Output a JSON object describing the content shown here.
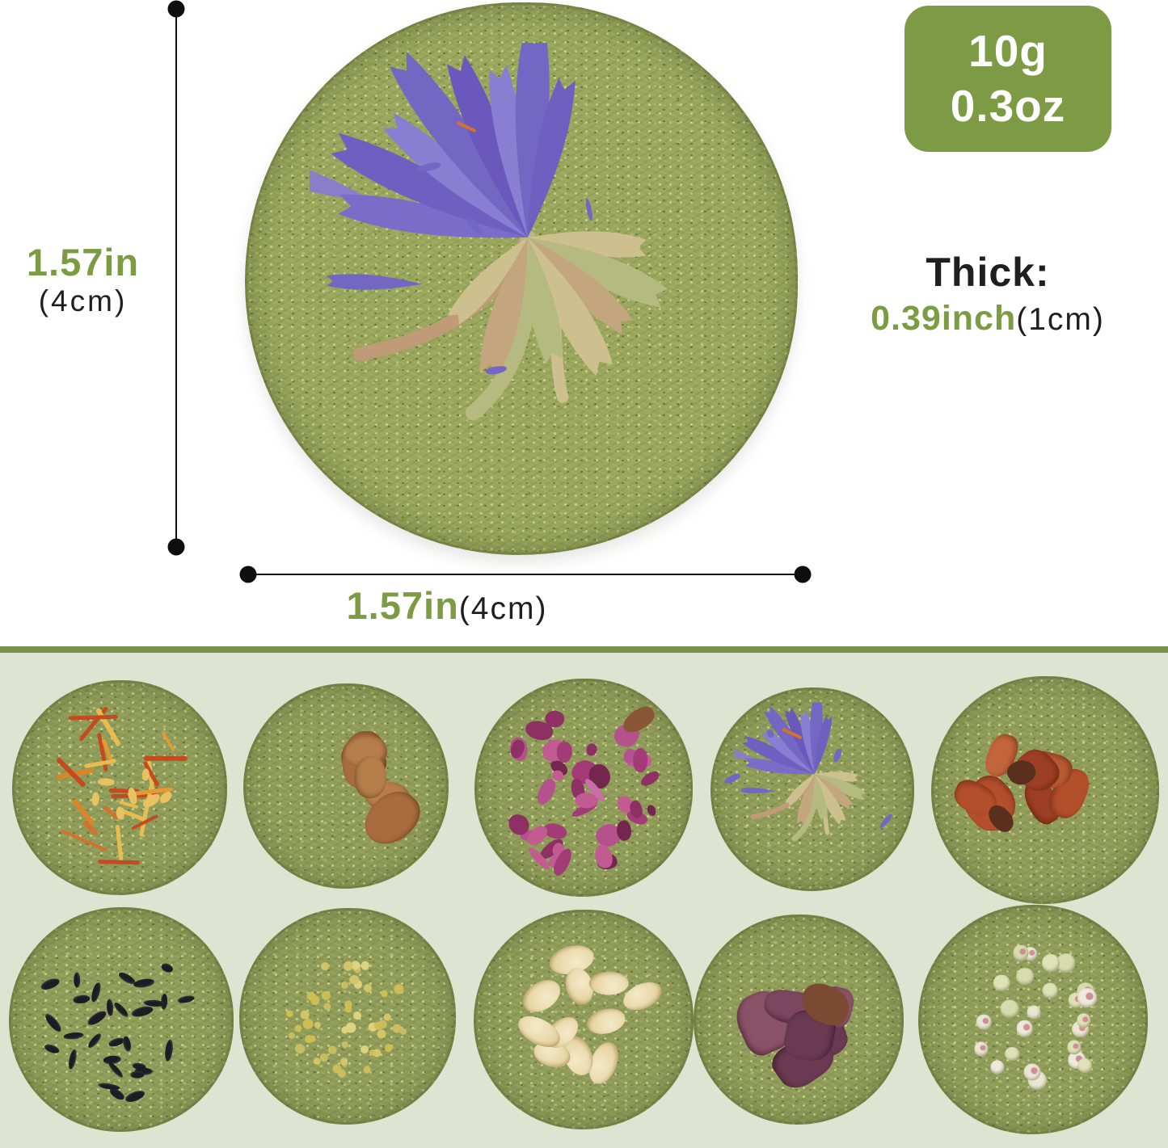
{
  "weight_badge": {
    "grams": "10g",
    "ounces": "0.3oz"
  },
  "height_dimension": {
    "value": "1.57in",
    "metric": "(4cm)"
  },
  "width_dimension": {
    "value": "1.57in",
    "metric": "(4cm)"
  },
  "thickness": {
    "label": "Thick:",
    "value": "0.39inch",
    "metric": "(1cm)"
  },
  "colors": {
    "accent_green": "#7b9c42",
    "badge_bg": "#7d9a45",
    "badge_text": "#ffffff",
    "panel_bg": "#dfe3d1",
    "divider": "#7a9147",
    "text_dark": "#1f1f1f",
    "hay_base": "#99a65b",
    "cornflower_purple": "#7466c3"
  },
  "main_cake": {
    "topping": "cornflower"
  },
  "variants": [
    {
      "topping": "safflower-petals"
    },
    {
      "topping": "dried-apple"
    },
    {
      "topping": "rose-petals"
    },
    {
      "topping": "cornflower"
    },
    {
      "topping": "dried-papaya"
    },
    {
      "topping": "black-seeds"
    },
    {
      "topping": "millet"
    },
    {
      "topping": "oat-groats"
    },
    {
      "topping": "purple-sweet-potato"
    },
    {
      "topping": "white-sorghum-seeds"
    }
  ]
}
